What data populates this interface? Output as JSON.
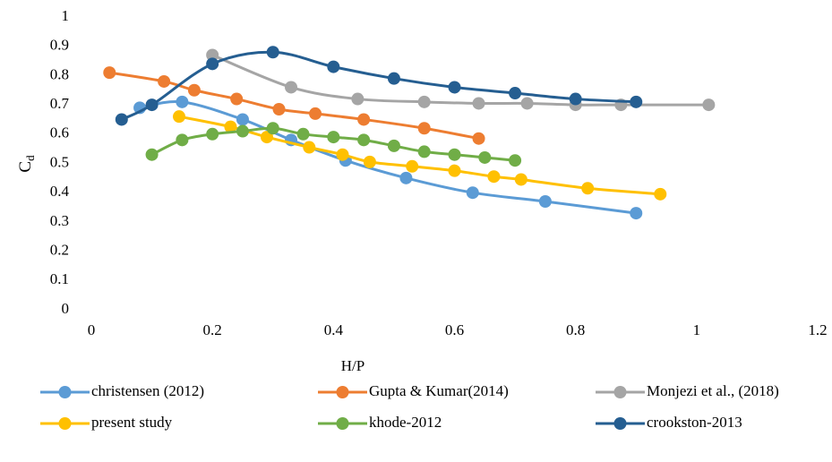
{
  "chart_data": {
    "type": "line",
    "x_label": "H/P",
    "y_label_base": "C",
    "y_label_subscript": "d",
    "xlim": [
      0,
      1.2
    ],
    "xticks": [
      0,
      0.2,
      0.4,
      0.6,
      0.8,
      1,
      1.2
    ],
    "ylim": [
      0,
      1
    ],
    "yticks": [
      0,
      0.1,
      0.2,
      0.3,
      0.4,
      0.5,
      0.6,
      0.7,
      0.8,
      0.9,
      1
    ],
    "smooth": true,
    "legend": "bottom",
    "series": [
      {
        "name": "christensen (2012)",
        "color": "#5b9bd5",
        "x": [
          0.08,
          0.15,
          0.25,
          0.33,
          0.42,
          0.52,
          0.63,
          0.75,
          0.9
        ],
        "values": [
          0.69,
          0.71,
          0.65,
          0.58,
          0.51,
          0.45,
          0.4,
          0.37,
          0.33
        ]
      },
      {
        "name": "Gupta & Kumar(2014)",
        "color": "#ed7d31",
        "x": [
          0.03,
          0.12,
          0.17,
          0.24,
          0.31,
          0.37,
          0.45,
          0.55,
          0.64
        ],
        "values": [
          0.81,
          0.78,
          0.75,
          0.72,
          0.685,
          0.67,
          0.65,
          0.62,
          0.585
        ]
      },
      {
        "name": "Monjezi et al., (2018)",
        "color": "#a5a5a5",
        "x": [
          0.2,
          0.33,
          0.44,
          0.55,
          0.64,
          0.72,
          0.8,
          0.875,
          1.02
        ],
        "values": [
          0.87,
          0.76,
          0.72,
          0.71,
          0.705,
          0.705,
          0.7,
          0.7,
          0.7
        ]
      },
      {
        "name": "present study",
        "color": "#ffc000",
        "x": [
          0.145,
          0.23,
          0.29,
          0.36,
          0.415,
          0.46,
          0.53,
          0.6,
          0.665,
          0.71,
          0.82,
          0.94
        ],
        "values": [
          0.66,
          0.625,
          0.59,
          0.555,
          0.53,
          0.505,
          0.49,
          0.475,
          0.455,
          0.445,
          0.415,
          0.395
        ]
      },
      {
        "name": "khode-2012",
        "color": "#70ad47",
        "x": [
          0.1,
          0.15,
          0.2,
          0.25,
          0.3,
          0.35,
          0.4,
          0.45,
          0.5,
          0.55,
          0.6,
          0.65,
          0.7
        ],
        "values": [
          0.53,
          0.58,
          0.6,
          0.61,
          0.62,
          0.6,
          0.59,
          0.58,
          0.56,
          0.54,
          0.53,
          0.52,
          0.51
        ]
      },
      {
        "name": "crookston-2013",
        "color": "#255e91",
        "x": [
          0.05,
          0.1,
          0.2,
          0.3,
          0.4,
          0.5,
          0.6,
          0.7,
          0.8,
          0.9
        ],
        "values": [
          0.65,
          0.7,
          0.84,
          0.88,
          0.83,
          0.79,
          0.76,
          0.74,
          0.72,
          0.71
        ]
      }
    ]
  }
}
